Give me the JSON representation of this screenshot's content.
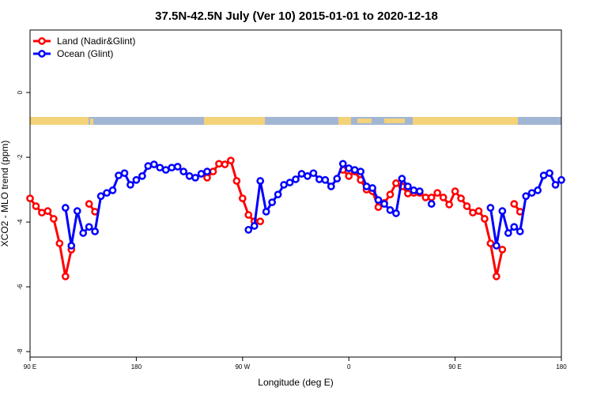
{
  "chart_data": {
    "type": "line",
    "title": "37.5N-42.5N July (Ver 10)   2015-01-01 to 2020-12-18",
    "xlabel": "Longitude (deg E)",
    "ylabel": "XCO2 - MLO trend (ppm)",
    "x": [
      90,
      95,
      100,
      105,
      110,
      115,
      120,
      125,
      130,
      135,
      140,
      145,
      150,
      155,
      160,
      165,
      170,
      175,
      180,
      185,
      190,
      195,
      200,
      205,
      210,
      215,
      220,
      225,
      230,
      235,
      240,
      245,
      250,
      255,
      260,
      265,
      270,
      275,
      280,
      285,
      290,
      295,
      300,
      305,
      310,
      315,
      320,
      325,
      330,
      335,
      340,
      345,
      350,
      355,
      360,
      365,
      370,
      375,
      380,
      385,
      390,
      395,
      400,
      405,
      410,
      415,
      420,
      425,
      430,
      435,
      440,
      445,
      450,
      455,
      460,
      465,
      470,
      475,
      480,
      485,
      490,
      495,
      500,
      505,
      510,
      515,
      520,
      525,
      530,
      535,
      540
    ],
    "series": [
      {
        "name": "Land (Nadir&Glint)",
        "color": "#ff0000",
        "values": [
          -3.27,
          -3.51,
          -3.71,
          -3.66,
          -3.9,
          -4.66,
          -5.68,
          -4.85,
          null,
          null,
          -3.44,
          -3.68,
          null,
          null,
          null,
          null,
          null,
          null,
          null,
          null,
          null,
          null,
          null,
          null,
          null,
          null,
          null,
          null,
          null,
          null,
          -2.63,
          -2.44,
          -2.2,
          -2.22,
          -2.1,
          -2.73,
          -3.27,
          -3.78,
          -3.98,
          -3.98,
          null,
          null,
          null,
          null,
          null,
          null,
          null,
          null,
          null,
          null,
          null,
          null,
          null,
          -2.39,
          -2.58,
          -2.44,
          -2.7,
          -3.0,
          -3.05,
          -3.54,
          -3.41,
          -3.15,
          -2.8,
          -2.9,
          -3.12,
          -3.1,
          -3.1,
          -3.24,
          -3.24,
          -3.1,
          -3.24,
          -3.46,
          -3.05,
          -3.27,
          -3.51,
          -3.71,
          -3.66,
          -3.9,
          -4.66,
          -5.68,
          -4.85,
          null,
          -3.44,
          -3.68,
          null,
          null,
          null,
          null,
          null,
          null,
          null
        ]
      },
      {
        "name": "Ocean (Glint)",
        "color": "#0000ff",
        "values": [
          null,
          null,
          null,
          null,
          null,
          null,
          -3.56,
          -4.73,
          -3.66,
          -4.34,
          -4.15,
          -4.29,
          -3.2,
          -3.1,
          -3.02,
          -2.56,
          -2.49,
          -2.85,
          -2.7,
          -2.58,
          -2.27,
          -2.22,
          -2.32,
          -2.39,
          -2.32,
          -2.29,
          -2.44,
          -2.58,
          -2.63,
          -2.51,
          -2.44,
          null,
          null,
          null,
          null,
          null,
          null,
          -4.24,
          -4.12,
          -2.73,
          -3.68,
          -3.39,
          -3.15,
          -2.85,
          -2.78,
          -2.68,
          -2.51,
          -2.58,
          -2.49,
          -2.68,
          -2.7,
          -2.9,
          -2.66,
          -2.2,
          -2.34,
          -2.39,
          -2.44,
          -2.9,
          -2.95,
          -3.32,
          -3.44,
          -3.63,
          -3.73,
          -2.66,
          -2.9,
          -3.02,
          -3.05,
          null,
          -3.44,
          null,
          null,
          null,
          null,
          null,
          null,
          null,
          null,
          null,
          -3.56,
          -4.73,
          -3.66,
          -4.34,
          -4.15,
          -4.29,
          -3.2,
          -3.1,
          -3.02,
          -2.56,
          -2.49,
          -2.85,
          -2.7
        ]
      }
    ],
    "xlim": [
      90,
      540
    ],
    "xticks": [
      {
        "value": 90,
        "label": "90 E"
      },
      {
        "value": 180,
        "label": "180"
      },
      {
        "value": 270,
        "label": "90 W"
      },
      {
        "value": 360,
        "label": "0"
      },
      {
        "value": 450,
        "label": "90 E"
      },
      {
        "value": 540,
        "label": "180"
      }
    ],
    "ylim": [
      -8.17,
      1.93
    ],
    "yticks": [
      -8,
      -6,
      -4,
      -2,
      0
    ],
    "legend": "topleft"
  }
}
